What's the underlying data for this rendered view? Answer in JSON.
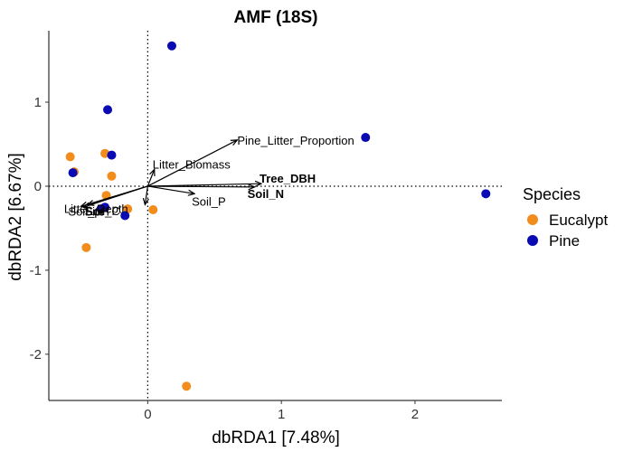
{
  "chart_data": {
    "type": "scatter",
    "title": "AMF (18S)",
    "xlabel": "dbRDA1 [7.48%]",
    "ylabel": "dbRDA2 [6.67%]",
    "xlim": [
      -0.74,
      2.65
    ],
    "ylim": [
      -2.55,
      1.85
    ],
    "x_ticks": [
      0,
      1,
      2
    ],
    "y_ticks": [
      -2,
      -1,
      0,
      1
    ],
    "grid": false,
    "reference_lines": {
      "x": 0,
      "y": 0,
      "style": "dotted"
    },
    "legend": {
      "title": "Species",
      "placement": "right",
      "entries": [
        {
          "name": "Eucalypt",
          "color": "#F28C1C"
        },
        {
          "name": "Pine",
          "color": "#0A0AB4"
        }
      ]
    },
    "series": [
      {
        "name": "Eucalypt",
        "color": "#F28C1C",
        "points": [
          {
            "x": -0.58,
            "y": 0.35
          },
          {
            "x": -0.55,
            "y": 0.17
          },
          {
            "x": -0.32,
            "y": 0.39
          },
          {
            "x": -0.27,
            "y": 0.12
          },
          {
            "x": -0.31,
            "y": -0.11
          },
          {
            "x": -0.46,
            "y": -0.73
          },
          {
            "x": -0.15,
            "y": -0.27
          },
          {
            "x": 0.04,
            "y": -0.28
          },
          {
            "x": 0.29,
            "y": -2.38
          }
        ]
      },
      {
        "name": "Pine",
        "color": "#0A0AB4",
        "points": [
          {
            "x": 0.18,
            "y": 1.67
          },
          {
            "x": -0.3,
            "y": 0.91
          },
          {
            "x": -0.27,
            "y": 0.37
          },
          {
            "x": -0.56,
            "y": 0.16
          },
          {
            "x": -0.32,
            "y": -0.25
          },
          {
            "x": -0.35,
            "y": -0.27
          },
          {
            "x": -0.17,
            "y": -0.35
          },
          {
            "x": 1.63,
            "y": 0.58
          },
          {
            "x": 2.53,
            "y": -0.09
          }
        ]
      }
    ],
    "vectors": [
      {
        "label": "Pine_Litter_Proportion",
        "x": 0.67,
        "y": 0.55,
        "bold": false
      },
      {
        "label": "Litter_Biomass",
        "x": 0.05,
        "y": 0.2,
        "bold": false
      },
      {
        "label": "Tree_DBH",
        "x": 0.85,
        "y": 0.03,
        "bold": true
      },
      {
        "label": "Soil_N",
        "x": 0.8,
        "y": -0.01,
        "bold": true
      },
      {
        "label": "Soil_P",
        "x": 0.35,
        "y": -0.09,
        "bold": false
      },
      {
        "label": "Litter_Depth",
        "x": -0.45,
        "y": -0.22,
        "bold": false
      },
      {
        "label": "Site",
        "x": -0.5,
        "y": -0.24,
        "bold": false
      },
      {
        "label": "Soil_C",
        "x": -0.48,
        "y": -0.25,
        "bold": false
      },
      {
        "label": "Soil_pH",
        "x": -0.02,
        "y": -0.22,
        "bold": false
      }
    ]
  }
}
